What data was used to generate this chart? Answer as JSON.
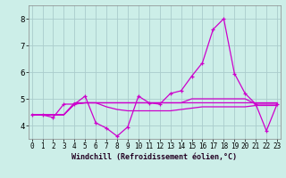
{
  "xlabel": "Windchill (Refroidissement éolien,°C)",
  "background_color": "#cceee8",
  "grid_color": "#aacccc",
  "line_color": "#cc00cc",
  "x_ticks": [
    0,
    1,
    2,
    3,
    4,
    5,
    6,
    7,
    8,
    9,
    10,
    11,
    12,
    13,
    14,
    15,
    16,
    17,
    18,
    19,
    20,
    21,
    22,
    23
  ],
  "y_ticks": [
    4,
    5,
    6,
    7,
    8
  ],
  "ylim": [
    3.5,
    8.5
  ],
  "xlim": [
    -0.3,
    23.3
  ],
  "series": [
    [
      4.4,
      4.4,
      4.3,
      4.8,
      4.8,
      5.1,
      4.1,
      3.9,
      3.6,
      3.95,
      5.1,
      4.85,
      4.8,
      5.2,
      5.3,
      5.85,
      6.35,
      7.6,
      8.0,
      5.95,
      5.2,
      4.8,
      3.8,
      4.8
    ],
    [
      4.4,
      4.4,
      4.4,
      4.4,
      4.8,
      4.85,
      4.85,
      4.85,
      4.85,
      4.85,
      4.85,
      4.85,
      4.85,
      4.85,
      4.85,
      5.0,
      5.0,
      5.0,
      5.0,
      5.0,
      5.0,
      4.8,
      4.8,
      4.8
    ],
    [
      4.4,
      4.4,
      4.4,
      4.4,
      4.85,
      4.85,
      4.85,
      4.7,
      4.6,
      4.55,
      4.55,
      4.55,
      4.55,
      4.55,
      4.6,
      4.65,
      4.7,
      4.7,
      4.7,
      4.7,
      4.7,
      4.75,
      4.75,
      4.75
    ],
    [
      4.4,
      4.4,
      4.4,
      4.4,
      4.8,
      4.85,
      4.85,
      4.85,
      4.85,
      4.85,
      4.85,
      4.85,
      4.85,
      4.85,
      4.85,
      4.85,
      4.85,
      4.85,
      4.85,
      4.85,
      4.85,
      4.85,
      4.85,
      4.85
    ]
  ],
  "xlabel_fontsize": 6,
  "tick_fontsize": 5.5,
  "ytick_fontsize": 6.5
}
